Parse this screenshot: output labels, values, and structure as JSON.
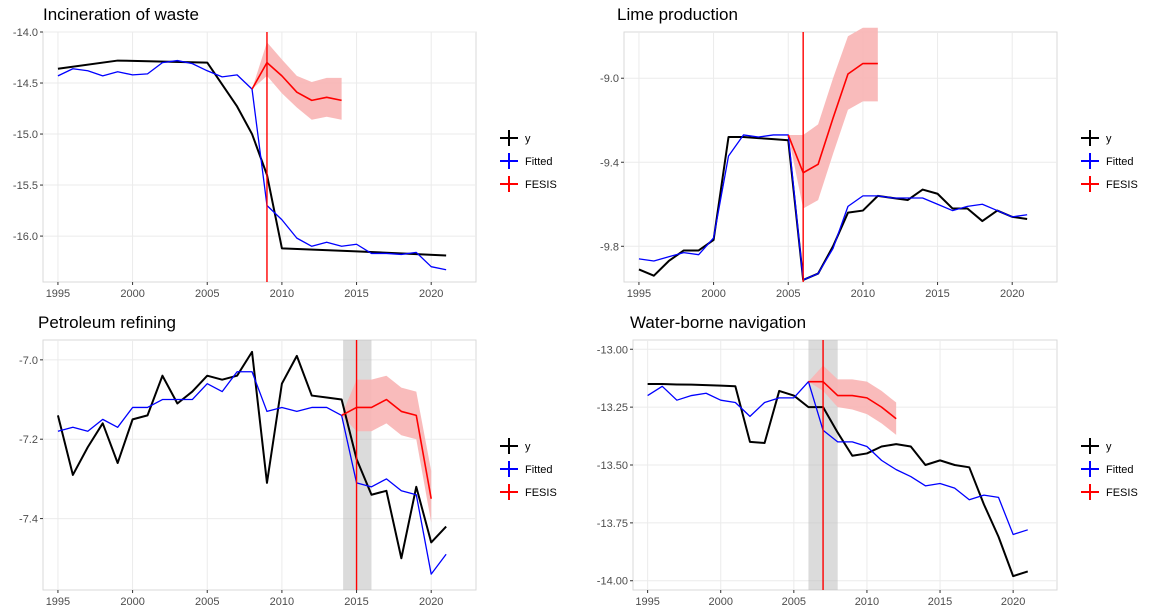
{
  "colors": {
    "y": "#000000",
    "fitted": "#0000FF",
    "fesis": "#FF0000",
    "band": "#F8B4B4",
    "shade": "#BEBEBE",
    "grid": "#EBEBEB"
  },
  "legend": {
    "items": [
      "y",
      "Fitted",
      "FESIS"
    ]
  },
  "chart_data": [
    {
      "type": "line",
      "title": "Incineration of waste",
      "xlim": [
        1994,
        2023
      ],
      "ylim": [
        -16.45,
        -14.0
      ],
      "xticks": [
        1995,
        2000,
        2005,
        2010,
        2015,
        2020
      ],
      "yticks": [
        -14.0,
        -14.5,
        -15.0,
        -15.5,
        -16.0
      ],
      "ytick_labels": [
        "-14.0",
        "-14.5",
        "-15.0",
        "-15.5",
        "-16.0"
      ],
      "break_year": 2009,
      "shade": null,
      "series": [
        {
          "name": "y",
          "x": [
            1995,
            1999,
            2005,
            2007,
            2008,
            2009,
            2010,
            2015,
            2021
          ],
          "values": [
            -14.36,
            -14.28,
            -14.3,
            -14.73,
            -15.0,
            -15.4,
            -16.12,
            -16.15,
            -16.19
          ]
        },
        {
          "name": "Fitted",
          "x": [
            1995,
            1996,
            1997,
            1998,
            1999,
            2000,
            2001,
            2002,
            2003,
            2004,
            2005,
            2006,
            2007,
            2008,
            2009,
            2010,
            2011,
            2012,
            2013,
            2014,
            2015,
            2016,
            2017,
            2018,
            2019,
            2020,
            2021
          ],
          "values": [
            -14.43,
            -14.36,
            -14.38,
            -14.43,
            -14.39,
            -14.42,
            -14.41,
            -14.3,
            -14.28,
            -14.31,
            -14.38,
            -14.44,
            -14.42,
            -14.56,
            -15.7,
            -15.84,
            -16.02,
            -16.1,
            -16.06,
            -16.1,
            -16.08,
            -16.17,
            -16.17,
            -16.18,
            -16.16,
            -16.3,
            -16.33
          ]
        },
        {
          "name": "FESIS",
          "x": [
            2008,
            2009,
            2010,
            2011,
            2012,
            2013,
            2014
          ],
          "values": [
            -14.56,
            -14.3,
            -14.43,
            -14.59,
            -14.67,
            -14.64,
            -14.67
          ],
          "lower": [
            -14.56,
            -14.43,
            -14.6,
            -14.74,
            -14.86,
            -14.83,
            -14.86
          ],
          "upper": [
            -14.56,
            -14.1,
            -14.27,
            -14.43,
            -14.49,
            -14.45,
            -14.45
          ]
        }
      ]
    },
    {
      "type": "line",
      "title": "Lime production",
      "xlim": [
        1994,
        2023
      ],
      "ylim": [
        -9.97,
        -8.78
      ],
      "xticks": [
        1995,
        2000,
        2005,
        2010,
        2015,
        2020
      ],
      "yticks": [
        -9.0,
        -9.4,
        -9.8
      ],
      "ytick_labels": [
        "-9.0",
        "-9.4",
        "-9.8"
      ],
      "break_year": 2006,
      "shade": null,
      "series": [
        {
          "name": "y",
          "x": [
            1995,
            1996,
            1997,
            1998,
            1999,
            2000,
            2001,
            2002,
            2003,
            2004,
            2005,
            2006,
            2007,
            2008,
            2009,
            2010,
            2011,
            2012,
            2013,
            2014,
            2015,
            2016,
            2017,
            2018,
            2019,
            2020,
            2021
          ],
          "values": [
            -9.91,
            -9.94,
            -9.87,
            -9.82,
            -9.82,
            -9.77,
            -9.28,
            -9.28,
            -9.285,
            -9.29,
            -9.295,
            -9.96,
            -9.93,
            -9.8,
            -9.64,
            -9.63,
            -9.56,
            -9.57,
            -9.58,
            -9.53,
            -9.55,
            -9.62,
            -9.62,
            -9.68,
            -9.63,
            -9.66,
            -9.67
          ]
        },
        {
          "name": "Fitted",
          "x": [
            1995,
            1996,
            1997,
            1998,
            1999,
            2000,
            2001,
            2002,
            2003,
            2004,
            2005,
            2006,
            2007,
            2008,
            2009,
            2010,
            2011,
            2012,
            2013,
            2014,
            2015,
            2016,
            2017,
            2018,
            2019,
            2020,
            2021
          ],
          "values": [
            -9.86,
            -9.87,
            -9.85,
            -9.83,
            -9.84,
            -9.76,
            -9.37,
            -9.27,
            -9.28,
            -9.27,
            -9.27,
            -9.96,
            -9.93,
            -9.81,
            -9.61,
            -9.56,
            -9.56,
            -9.57,
            -9.57,
            -9.57,
            -9.6,
            -9.63,
            -9.61,
            -9.6,
            -9.63,
            -9.66,
            -9.65
          ]
        },
        {
          "name": "FESIS",
          "x": [
            2005,
            2006,
            2007,
            2008,
            2009,
            2010,
            2011
          ],
          "values": [
            -9.27,
            -9.45,
            -9.41,
            -9.19,
            -8.98,
            -8.93,
            -8.93
          ],
          "lower": [
            -9.27,
            -9.62,
            -9.58,
            -9.36,
            -9.15,
            -9.11,
            -9.11
          ],
          "upper": [
            -9.27,
            -9.27,
            -9.22,
            -9.0,
            -8.8,
            -8.76,
            -8.76
          ]
        }
      ]
    },
    {
      "type": "line",
      "title": "Petroleum refining",
      "xlim": [
        1994,
        2023
      ],
      "ylim": [
        -7.58,
        -6.95
      ],
      "xticks": [
        1995,
        2000,
        2005,
        2010,
        2015,
        2020
      ],
      "yticks": [
        -7.0,
        -7.2,
        -7.4
      ],
      "ytick_labels": [
        "-7.0",
        "-7.2",
        "-7.4"
      ],
      "break_year": 2015,
      "shade": [
        2014.1,
        2016
      ],
      "series": [
        {
          "name": "y",
          "x": [
            1995,
            1996,
            1997,
            1998,
            1999,
            2000,
            2001,
            2002,
            2003,
            2004,
            2005,
            2006,
            2007,
            2008,
            2009,
            2010,
            2011,
            2012,
            2013,
            2014,
            2015,
            2016,
            2017,
            2018,
            2019,
            2020,
            2021
          ],
          "values": [
            -7.14,
            -7.29,
            -7.22,
            -7.16,
            -7.26,
            -7.15,
            -7.14,
            -7.04,
            -7.11,
            -7.08,
            -7.04,
            -7.05,
            -7.04,
            -6.98,
            -7.31,
            -7.06,
            -6.99,
            -7.09,
            -7.095,
            -7.1,
            -7.25,
            -7.34,
            -7.33,
            -7.5,
            -7.32,
            -7.46,
            -7.42
          ]
        },
        {
          "name": "Fitted",
          "x": [
            1995,
            1996,
            1997,
            1998,
            1999,
            2000,
            2001,
            2002,
            2003,
            2004,
            2005,
            2006,
            2007,
            2008,
            2009,
            2010,
            2011,
            2012,
            2013,
            2014,
            2015,
            2016,
            2017,
            2018,
            2019,
            2020,
            2021
          ],
          "values": [
            -7.18,
            -7.17,
            -7.18,
            -7.15,
            -7.17,
            -7.12,
            -7.12,
            -7.1,
            -7.1,
            -7.1,
            -7.06,
            -7.08,
            -7.03,
            -7.03,
            -7.13,
            -7.12,
            -7.13,
            -7.12,
            -7.12,
            -7.14,
            -7.31,
            -7.32,
            -7.3,
            -7.33,
            -7.34,
            -7.54,
            -7.49
          ]
        },
        {
          "name": "FESIS",
          "x": [
            2014,
            2015,
            2016,
            2017,
            2018,
            2019,
            2020
          ],
          "values": [
            -7.14,
            -7.12,
            -7.12,
            -7.1,
            -7.13,
            -7.14,
            -7.35
          ],
          "lower": [
            -7.14,
            -7.18,
            -7.18,
            -7.16,
            -7.19,
            -7.2,
            -7.41
          ],
          "upper": [
            -7.14,
            -7.05,
            -7.05,
            -7.04,
            -7.07,
            -7.08,
            -7.28
          ]
        }
      ]
    },
    {
      "type": "line",
      "title": "Water-borne navigation",
      "xlim": [
        1994,
        2023
      ],
      "ylim": [
        -14.04,
        -12.96
      ],
      "xticks": [
        1995,
        2000,
        2005,
        2010,
        2015,
        2020
      ],
      "yticks": [
        -13.0,
        -13.25,
        -13.5,
        -13.75,
        -14.0
      ],
      "ytick_labels": [
        "-13.00",
        "-13.25",
        "-13.50",
        "-13.75",
        "-14.00"
      ],
      "break_year": 2007,
      "shade": [
        2006,
        2008
      ],
      "series": [
        {
          "name": "y",
          "x": [
            1995,
            1996,
            1997,
            1998,
            1999,
            2000,
            2001,
            2002,
            2003,
            2004,
            2005,
            2006,
            2007,
            2008,
            2009,
            2010,
            2011,
            2012,
            2013,
            2014,
            2015,
            2016,
            2017,
            2018,
            2019,
            2020,
            2021
          ],
          "values": [
            -13.15,
            -13.15,
            -13.152,
            -13.153,
            -13.155,
            -13.157,
            -13.16,
            -13.4,
            -13.405,
            -13.18,
            -13.2,
            -13.25,
            -13.25,
            -13.36,
            -13.46,
            -13.45,
            -13.42,
            -13.41,
            -13.42,
            -13.5,
            -13.48,
            -13.5,
            -13.51,
            -13.67,
            -13.81,
            -13.98,
            -13.96
          ]
        },
        {
          "name": "Fitted",
          "x": [
            1995,
            1996,
            1997,
            1998,
            1999,
            2000,
            2001,
            2002,
            2003,
            2004,
            2005,
            2006,
            2007,
            2008,
            2009,
            2010,
            2011,
            2012,
            2013,
            2014,
            2015,
            2016,
            2017,
            2018,
            2019,
            2020,
            2021
          ],
          "values": [
            -13.2,
            -13.16,
            -13.22,
            -13.2,
            -13.19,
            -13.22,
            -13.23,
            -13.29,
            -13.23,
            -13.21,
            -13.21,
            -13.14,
            -13.35,
            -13.4,
            -13.4,
            -13.42,
            -13.48,
            -13.52,
            -13.55,
            -13.59,
            -13.58,
            -13.6,
            -13.65,
            -13.63,
            -13.64,
            -13.8,
            -13.78
          ]
        },
        {
          "name": "FESIS",
          "x": [
            2006,
            2007,
            2008,
            2009,
            2010,
            2011,
            2012
          ],
          "values": [
            -13.14,
            -13.14,
            -13.2,
            -13.2,
            -13.21,
            -13.25,
            -13.3
          ],
          "lower": [
            -13.14,
            -13.18,
            -13.25,
            -13.26,
            -13.28,
            -13.32,
            -13.37
          ],
          "upper": [
            -13.14,
            -13.07,
            -13.13,
            -13.13,
            -13.14,
            -13.18,
            -13.23
          ]
        }
      ]
    }
  ]
}
